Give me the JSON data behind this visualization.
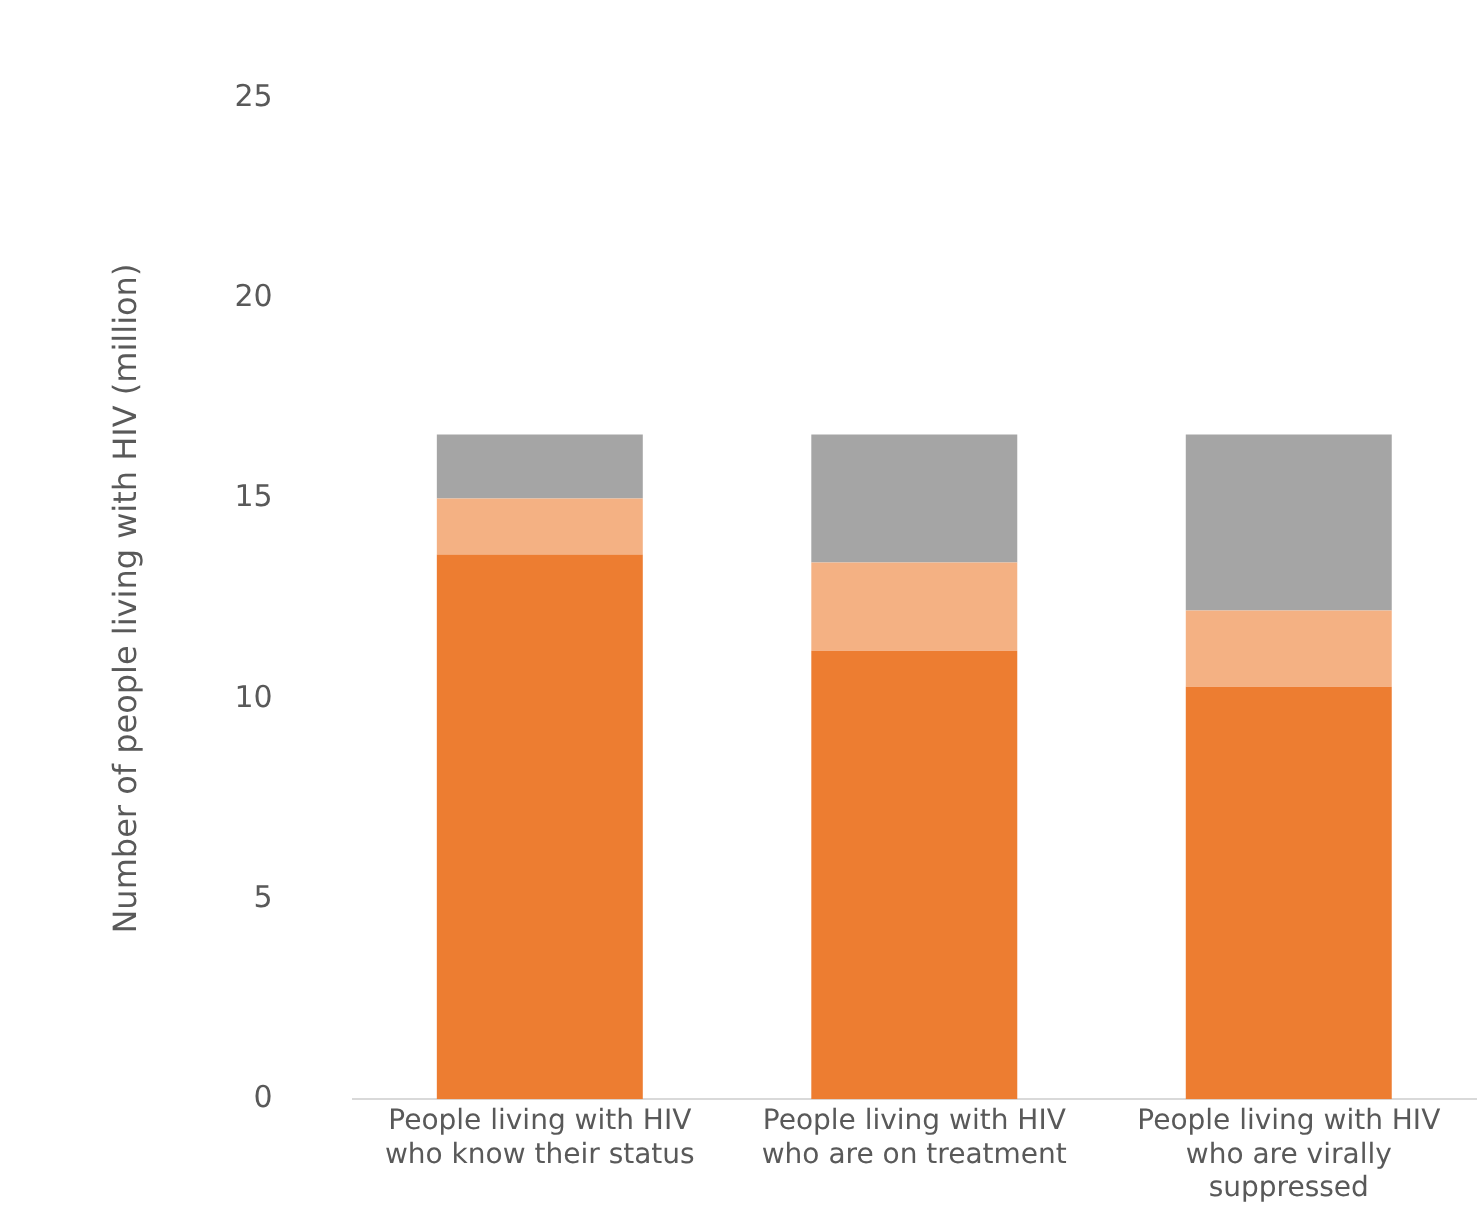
{
  "chart_data": {
    "type": "bar",
    "stacked": true,
    "ylabel": "Number of people living with HIV (million)",
    "categories": [
      "People living with HIV who know their status",
      "People living with HIV who are on treatment",
      "People living with HIV who are virally suppressed"
    ],
    "series": [
      {
        "color": "#ed7d31",
        "values": [
          13.6,
          11.2,
          10.3
        ]
      },
      {
        "color": "#f4b183",
        "values": [
          1.4,
          2.2,
          1.9
        ]
      },
      {
        "color": "#a5a5a5",
        "values": [
          1.6,
          3.2,
          4.4
        ]
      }
    ],
    "ylim": [
      0,
      25
    ],
    "yticks": [
      0,
      5,
      10,
      15,
      20,
      25
    ],
    "grid": false,
    "legend": false
  }
}
